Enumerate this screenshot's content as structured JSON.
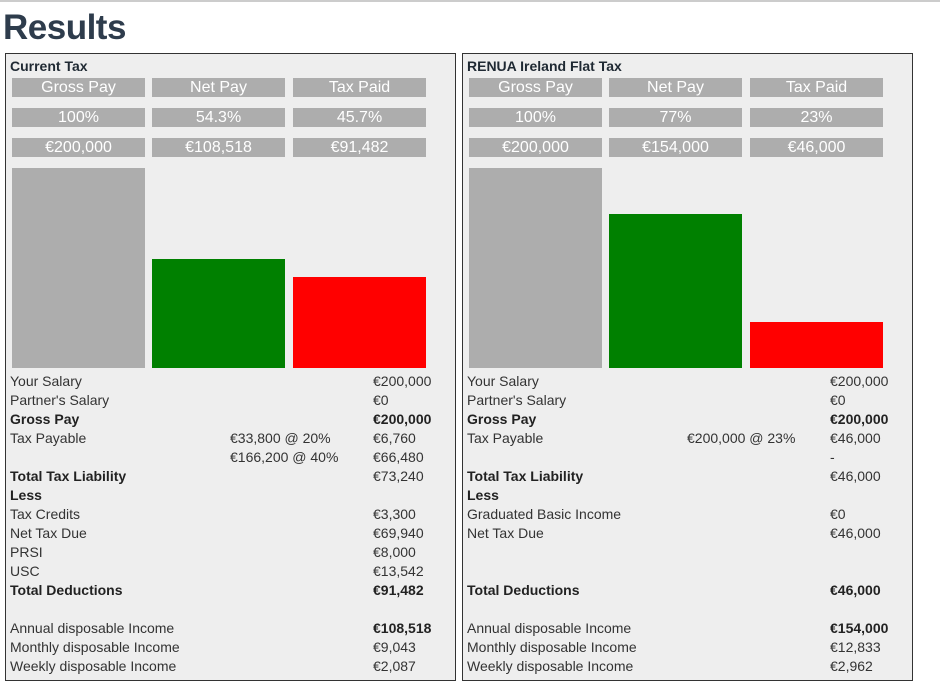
{
  "page": {
    "title": "Results"
  },
  "panels": [
    {
      "title": "Current Tax",
      "headers": [
        "Gross Pay",
        "Net Pay",
        "Tax Paid"
      ],
      "percents": [
        "100%",
        "54.3%",
        "45.7%"
      ],
      "amounts": [
        "€200,000",
        "€108,518",
        "€91,482"
      ],
      "rows": [
        {
          "label": "Your Salary",
          "mid": "",
          "value": "€200,000",
          "bold": false
        },
        {
          "label": "Partner's Salary",
          "mid": "",
          "value": "€0",
          "bold": false
        },
        {
          "label": "Gross Pay",
          "mid": "",
          "value": "€200,000",
          "bold": true
        },
        {
          "label": "Tax Payable",
          "mid": "€33,800 @ 20%",
          "value": "€6,760",
          "bold": false
        },
        {
          "label": "",
          "mid": "€166,200 @ 40%",
          "value": "€66,480",
          "bold": false
        },
        {
          "label": "Total Tax Liability",
          "mid": "",
          "value": "€73,240",
          "bold": false,
          "label_bold": true
        },
        {
          "label": "Less",
          "mid": "",
          "value": "",
          "bold": true
        },
        {
          "label": "Tax Credits",
          "mid": "",
          "value": "€3,300",
          "bold": false
        },
        {
          "label": "Net Tax Due",
          "mid": "",
          "value": "€69,940",
          "bold": false
        },
        {
          "label": "PRSI",
          "mid": "",
          "value": "€8,000",
          "bold": false
        },
        {
          "label": "USC",
          "mid": "",
          "value": "€13,542",
          "bold": false
        },
        {
          "label": "Total Deductions",
          "mid": "",
          "value": "€91,482",
          "bold": true
        },
        {
          "label": "",
          "mid": "",
          "value": "",
          "bold": false
        },
        {
          "label": "Annual disposable Income",
          "mid": "",
          "value": "€108,518",
          "bold": false,
          "value_bold": true
        },
        {
          "label": "Monthly disposable Income",
          "mid": "",
          "value": "€9,043",
          "bold": false
        },
        {
          "label": "Weekly disposable Income",
          "mid": "",
          "value": "€2,087",
          "bold": false
        }
      ]
    },
    {
      "title": "RENUA Ireland Flat Tax",
      "headers": [
        "Gross Pay",
        "Net Pay",
        "Tax Paid"
      ],
      "percents": [
        "100%",
        "77%",
        "23%"
      ],
      "amounts": [
        "€200,000",
        "€154,000",
        "€46,000"
      ],
      "rows": [
        {
          "label": "Your Salary",
          "mid": "",
          "value": "€200,000",
          "bold": false
        },
        {
          "label": "Partner's Salary",
          "mid": "",
          "value": "€0",
          "bold": false
        },
        {
          "label": "Gross Pay",
          "mid": "",
          "value": "€200,000",
          "bold": true
        },
        {
          "label": "Tax Payable",
          "mid": "€200,000 @ 23%",
          "value": "€46,000",
          "bold": false
        },
        {
          "label": "",
          "mid": "",
          "value": "-",
          "bold": false
        },
        {
          "label": "Total Tax Liability",
          "mid": "",
          "value": "€46,000",
          "bold": false,
          "label_bold": true
        },
        {
          "label": "Less",
          "mid": "",
          "value": "",
          "bold": true
        },
        {
          "label": "Graduated Basic Income",
          "mid": "",
          "value": "€0",
          "bold": false
        },
        {
          "label": "Net Tax Due",
          "mid": "",
          "value": "€46,000",
          "bold": false
        },
        {
          "label": "",
          "mid": "",
          "value": "",
          "bold": false
        },
        {
          "label": "",
          "mid": "",
          "value": "",
          "bold": false
        },
        {
          "label": "Total Deductions",
          "mid": "",
          "value": "€46,000",
          "bold": true
        },
        {
          "label": "",
          "mid": "",
          "value": "",
          "bold": false
        },
        {
          "label": "Annual disposable Income",
          "mid": "",
          "value": "€154,000",
          "bold": false,
          "value_bold": true
        },
        {
          "label": "Monthly disposable Income",
          "mid": "",
          "value": "€12,833",
          "bold": false
        },
        {
          "label": "Weekly disposable Income",
          "mid": "",
          "value": "€2,962",
          "bold": false
        }
      ]
    }
  ],
  "colors": {
    "gross": "#adadad",
    "net": "#008000",
    "tax": "#ff0000"
  },
  "chart_data": [
    {
      "type": "bar",
      "title": "Current Tax",
      "categories": [
        "Gross Pay",
        "Net Pay",
        "Tax Paid"
      ],
      "values": [
        200000,
        108518,
        91482
      ],
      "ylim": [
        0,
        200000
      ]
    },
    {
      "type": "bar",
      "title": "RENUA Ireland Flat Tax",
      "categories": [
        "Gross Pay",
        "Net Pay",
        "Tax Paid"
      ],
      "values": [
        200000,
        154000,
        46000
      ],
      "ylim": [
        0,
        200000
      ]
    }
  ]
}
